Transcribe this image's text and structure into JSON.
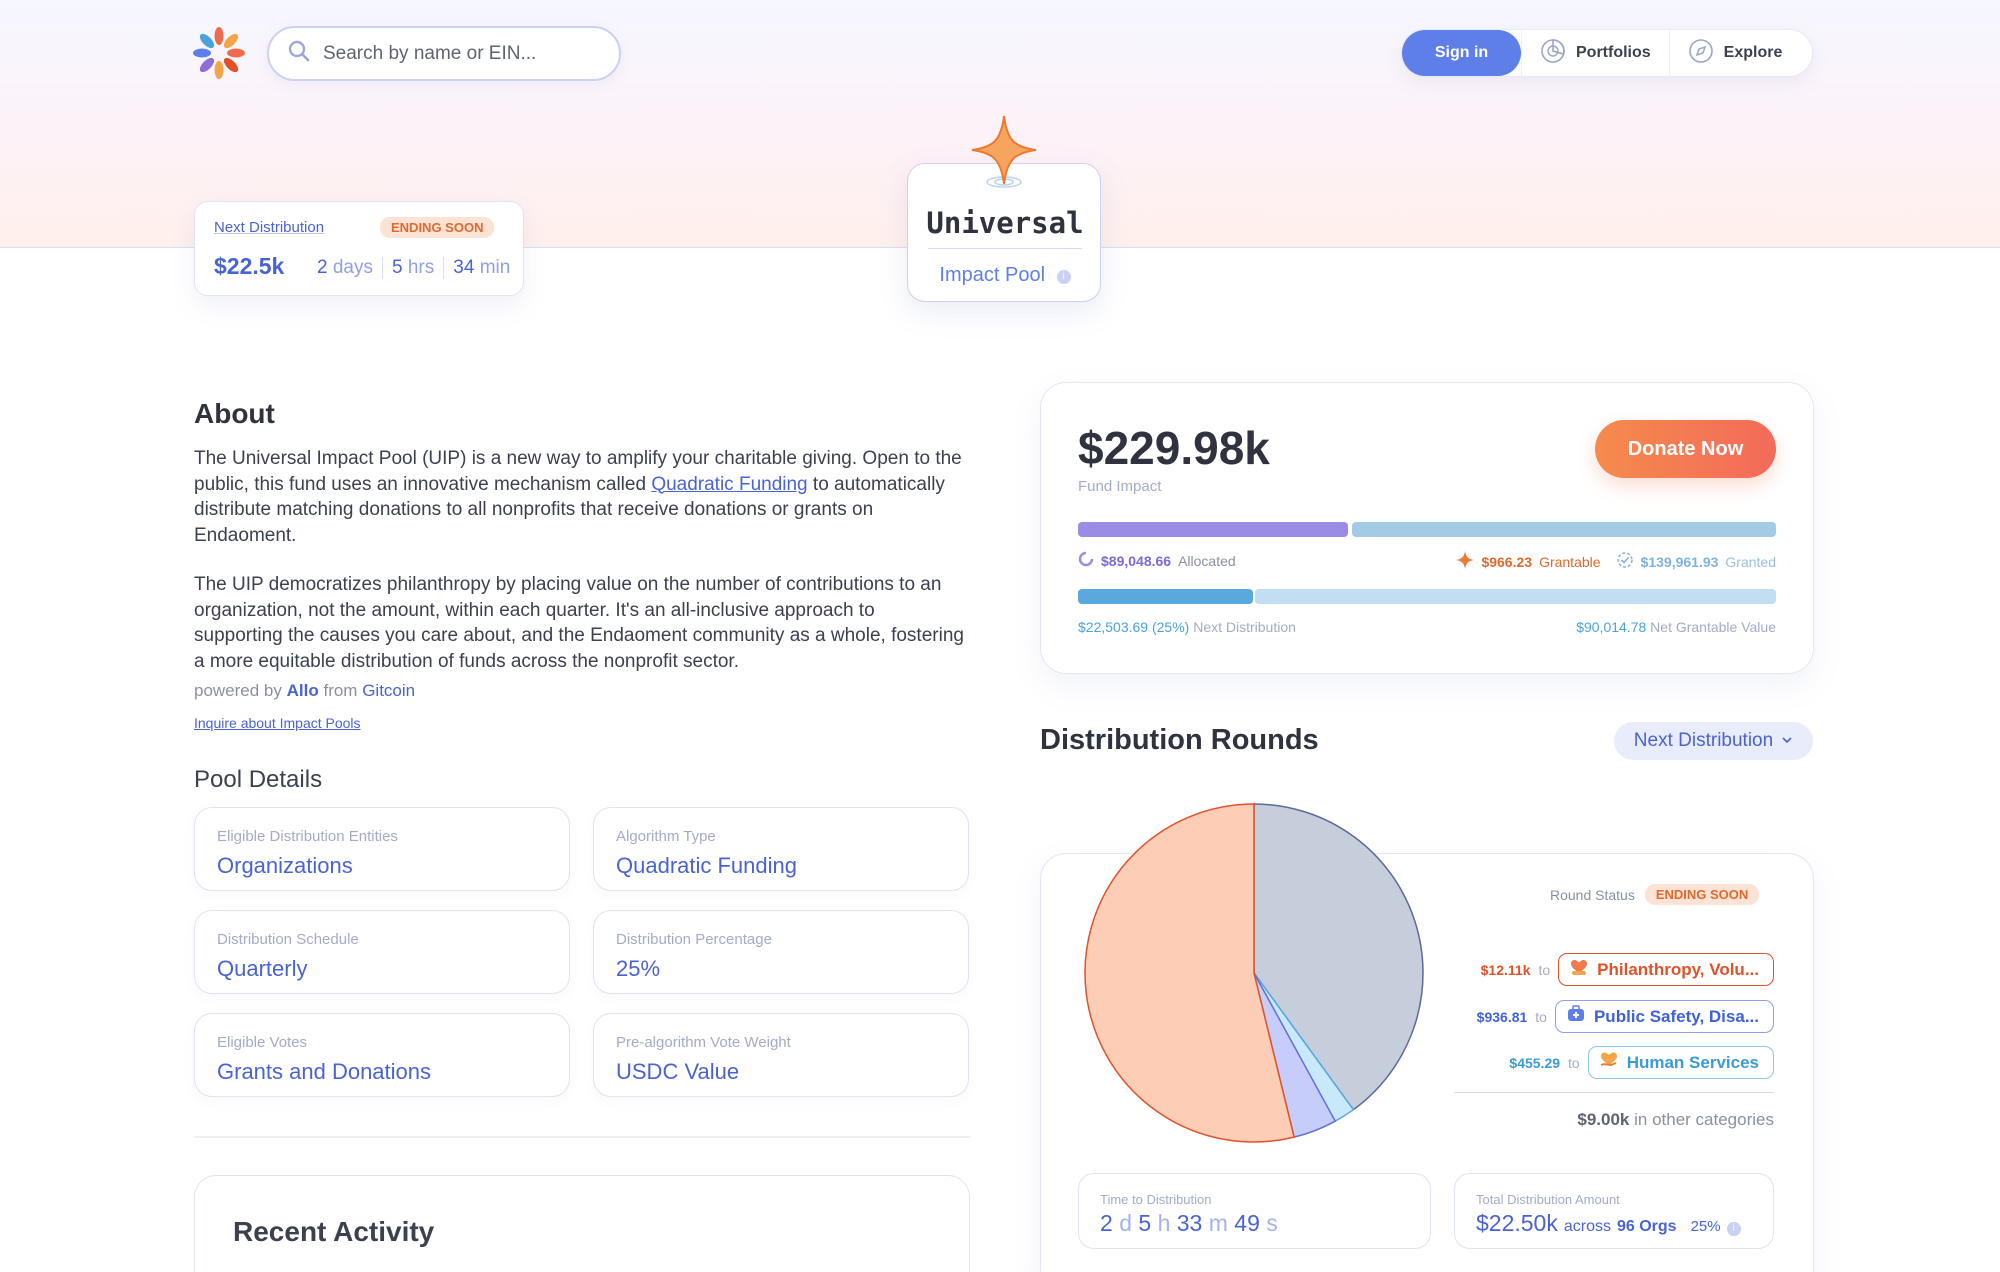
{
  "header": {
    "search_placeholder": "Search by name or EIN...",
    "signin_label": "Sign in",
    "portfolios_label": "Portfolios",
    "explore_label": "Explore"
  },
  "next_distribution": {
    "label": "Next Distribution",
    "badge": "ENDING SOON",
    "amount": "$22.5k",
    "days_value": "2",
    "days_unit": "days",
    "hrs_value": "5",
    "hrs_unit": "hrs",
    "min_value": "34",
    "min_unit": "min"
  },
  "pool": {
    "title": "Universal",
    "subtitle": "Impact Pool"
  },
  "about": {
    "heading": "About",
    "p1_a": "The Universal Impact Pool (UIP) is a new way to amplify your charitable giving. Open to the public, this fund uses an innovative mechanism called ",
    "p1_link": "Quadratic Funding",
    "p1_b": " to automatically distribute matching donations to all nonprofits that receive donations or grants on Endaoment.",
    "p2": "The UIP democratizes philanthropy by placing value on the number of contributions to an organization, not the amount, within each quarter. It's an all-inclusive approach to supporting the causes you care about, and the Endaoment community as a whole, fostering a more equitable distribution of funds across the nonprofit sector.",
    "powered_prefix": "powered by",
    "powered_allo": "Allo",
    "powered_from": "from",
    "powered_gitcoin": "Gitcoin",
    "inquire": "Inquire about Impact Pools"
  },
  "pool_details": {
    "heading": "Pool Details",
    "items": [
      {
        "label": "Eligible Distribution Entities",
        "value": "Organizations"
      },
      {
        "label": "Algorithm Type",
        "value": "Quadratic Funding"
      },
      {
        "label": "Distribution Schedule",
        "value": "Quarterly"
      },
      {
        "label": "Distribution Percentage",
        "value": "25%"
      },
      {
        "label": "Eligible Votes",
        "value": "Grants and Donations"
      },
      {
        "label": "Pre-algorithm Vote Weight",
        "value": "USDC Value"
      }
    ]
  },
  "recent_activity": {
    "heading": "Recent Activity"
  },
  "fund": {
    "amount": "$229.98k",
    "amount_label": "Fund Impact",
    "donate_label": "Donate Now",
    "allocated_value": "$89,048.66",
    "allocated_label": "Allocated",
    "grantable_value": "$966.23",
    "grantable_label": "Grantable",
    "granted_value": "$139,961.93",
    "granted_label": "Granted",
    "allocated_fraction": 0.387,
    "next_dist_value": "$22,503.69 (25%)",
    "next_dist_label": "Next Distribution",
    "net_grantable_value": "$90,014.78",
    "net_grantable_label": "Net Grantable Value",
    "next_dist_fraction": 0.25,
    "colors": {
      "allocated": "#9b8ce6",
      "granted": "#a3cbe6",
      "next": "#5aa9dd",
      "net": "#c2def2"
    }
  },
  "distribution_rounds": {
    "heading": "Distribution Rounds",
    "selector_label": "Next Distribution",
    "round_status_label": "Round Status",
    "round_status_badge": "ENDING SOON",
    "categories": [
      {
        "amount": "$12.11k",
        "to": "to",
        "name": "Philanthropy, Volu...",
        "color": "#e0522a",
        "icon": "heart-hands-icon"
      },
      {
        "amount": "$936.81",
        "to": "to",
        "name": "Public Safety, Disa...",
        "color": "#3f62d8",
        "icon": "medical-kit-icon"
      },
      {
        "amount": "$455.29",
        "to": "to",
        "name": "Human Services",
        "color": "#3a9bd6",
        "icon": "heart-hand-icon"
      }
    ],
    "other_amount": "$9.00k",
    "other_label": "in other categories",
    "time_label": "Time to Distribution",
    "time_d": "2",
    "time_d_unit": "d",
    "time_h": "5",
    "time_h_unit": "h",
    "time_m": "33",
    "time_m_unit": "m",
    "time_s": "49",
    "time_s_unit": "s",
    "total_label": "Total Distribution Amount",
    "total_amount": "$22.50k",
    "total_across": "across",
    "total_orgs": "96 Orgs",
    "total_pct": "25%"
  },
  "chart_data": {
    "type": "pie",
    "title": "Distribution Rounds",
    "categories": [
      "Philanthropy, Voluntarism & Grantmaking",
      "Public Safety, Disaster Preparedness & Relief",
      "Human Services",
      "Other categories"
    ],
    "values": [
      12110,
      936.81,
      455.29,
      9000
    ],
    "colors": [
      "#fdcdb6",
      "#c6cdfa",
      "#c9e8fb",
      "#c6cedc"
    ],
    "strokes": [
      "#e0522a",
      "#6470d8",
      "#5aa9dd",
      "#5a6a99"
    ]
  }
}
